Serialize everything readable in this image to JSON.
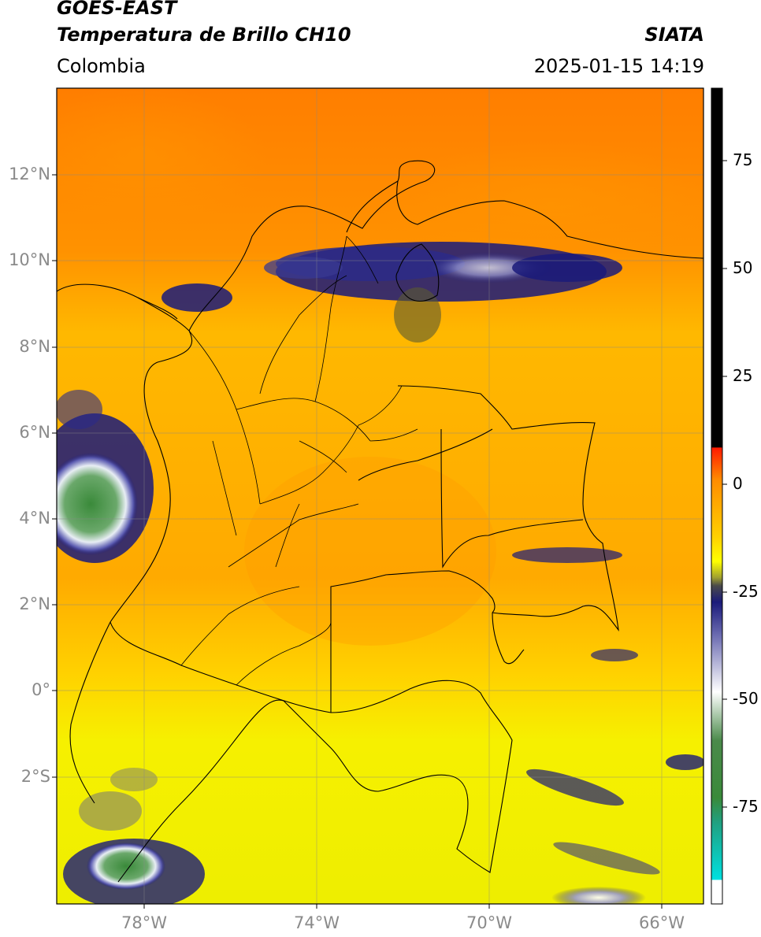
{
  "header": {
    "title_line1": "GOES-EAST",
    "title_line2": "Temperatura de Brillo CH10",
    "source": "SIATA",
    "region": "Colombia",
    "datetime": "2025-01-15 14:19"
  },
  "axes": {
    "latitude_labels": [
      "12°N",
      "10°N",
      "8°N",
      "6°N",
      "4°N",
      "2°N",
      "0°",
      "2°S"
    ],
    "longitude_labels": [
      "78°W",
      "74°W",
      "70°W",
      "66°W"
    ]
  },
  "colorbar": {
    "tick_labels": [
      "75",
      "50",
      "25",
      "0",
      "-25",
      "-50",
      "-75"
    ],
    "colors": {
      "black": "#000000",
      "red": "#ff1a00",
      "orange": "#ff8c00",
      "yellow": "#ffff00",
      "olive": "#5a5a20",
      "navy": "#1a1a7a",
      "white": "#ffffff",
      "green": "#3a8a3a",
      "teal": "#20a080",
      "cyan": "#00e0e0"
    }
  },
  "map_colors": {
    "north_background": "#ff8a00",
    "central_background": "#ffb400",
    "south_background": "#f2f200",
    "cloud_deep": "#1a1a7a",
    "cloud_mid": "#8a8ac8",
    "cloud_light": "#ffffff",
    "cloud_core": "#3a8a3a",
    "border": "#000000",
    "grid": "#888888"
  }
}
